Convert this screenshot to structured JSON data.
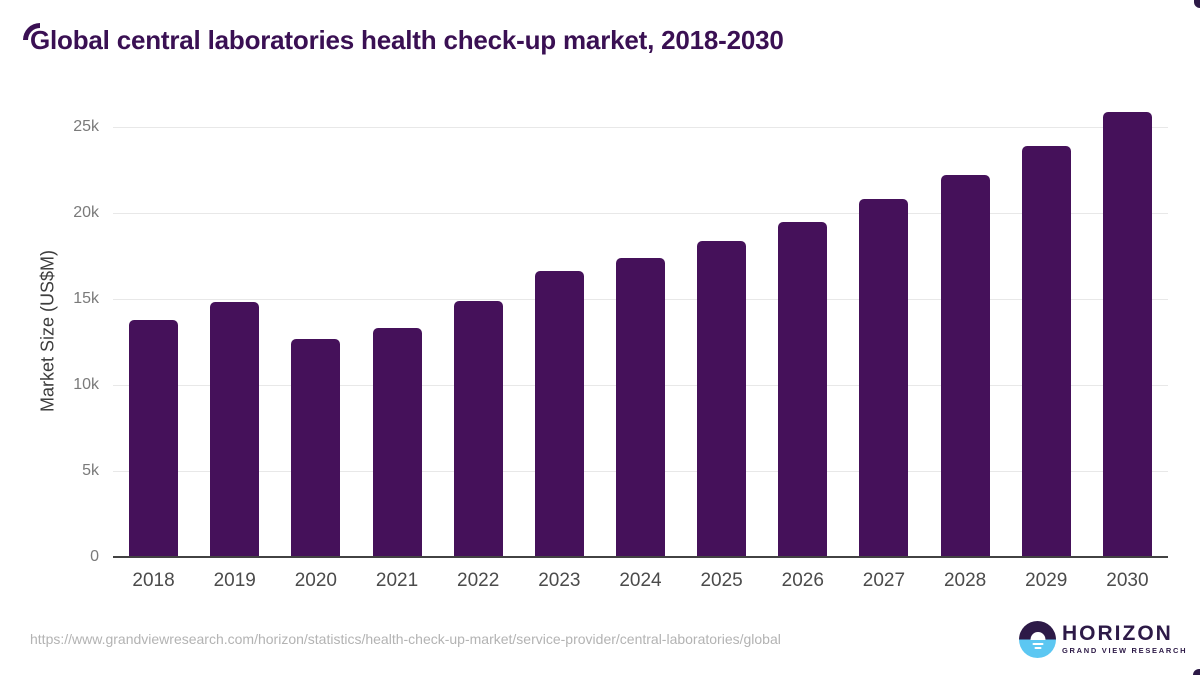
{
  "header": {
    "title": "Global central laboratories health check-up market, 2018-2030"
  },
  "chart_data": {
    "type": "bar",
    "title": "Global central laboratories health check-up market, 2018-2030",
    "categories": [
      "2018",
      "2019",
      "2020",
      "2021",
      "2022",
      "2023",
      "2024",
      "2025",
      "2026",
      "2027",
      "2028",
      "2029",
      "2030"
    ],
    "values": [
      13800,
      14800,
      12700,
      13300,
      14900,
      16600,
      17400,
      18400,
      19500,
      20800,
      22200,
      23900,
      25900
    ],
    "xlabel": "",
    "ylabel": "Market Size (US$M)",
    "ylim": [
      0,
      26500
    ],
    "yticks": [
      {
        "value": 0,
        "label": "0"
      },
      {
        "value": 5000,
        "label": "5k"
      },
      {
        "value": 10000,
        "label": "10k"
      },
      {
        "value": 15000,
        "label": "15k"
      },
      {
        "value": 20000,
        "label": "20k"
      },
      {
        "value": 25000,
        "label": "25k"
      }
    ],
    "grid": "horizontal",
    "legend": "none",
    "bar_color": "#45115a"
  },
  "footer": {
    "source_url": "https://www.grandviewresearch.com/horizon/statistics/health-check-up-market/service-provider/central-laboratories/global",
    "logo": {
      "name": "HORIZON",
      "subtitle": "GRAND VIEW RESEARCH",
      "icon": "sunrise-horizon-icon",
      "dark_color": "#2d1a47",
      "blue_color": "#5cc7f2"
    }
  },
  "colors": {
    "title_text": "#3a1053",
    "bar": "#45115a",
    "gridline": "#e8e8e8",
    "baseline": "#424242",
    "ytick_text": "#7a7a7a",
    "xtick_text": "#4b4b4b",
    "url_text": "#b3b3b3",
    "background": "#ffffff"
  }
}
